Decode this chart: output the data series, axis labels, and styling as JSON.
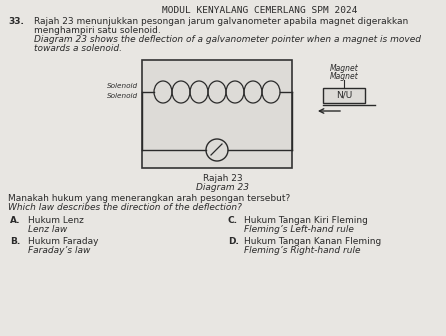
{
  "title": "MODUL KENYALANG CEMERLANG SPM 2024",
  "question_num": "33.",
  "malay_text1": "Rajah 23 menunjukkan pesongan jarum galvanometer apabila magnet digerakkan",
  "malay_text2": "menghampiri satu solenoid.",
  "english_text1": "Diagram 23 shows the deflection of a galvanometer pointer when a magnet is moved",
  "english_text2": "towards a solenoid.",
  "solenoid_label_ms": "Solenoid",
  "solenoid_label_en": "Solenoid",
  "magnet_label_ms": "Magnet",
  "magnet_label_en": "Magnet",
  "magnet_pole": "N/U",
  "diagram_label_ms": "Rajah 23",
  "diagram_label_en": "Diagram 23",
  "question_ms": "Manakah hukum yang menerangkan arah pesongan tersebut?",
  "question_en": "Which law describes the direction of the deflection?",
  "optA_ms": "Hukum Lenz",
  "optA_en": "Lenz law",
  "optB_ms": "Hukum Faraday",
  "optB_en": "Faraday’s law",
  "optC_ms": "Hukum Tangan Kiri Fleming",
  "optC_en": "Fleming’s Left-hand rule",
  "optD_ms": "Hukum Tangan Kanan Fleming",
  "optD_en": "Fleming’s Right-hand rule",
  "bg_color": "#e8e6e2",
  "text_color": "#2a2a2a",
  "diagram_bg": "#e8e6e2",
  "diagram_border": "#333333"
}
